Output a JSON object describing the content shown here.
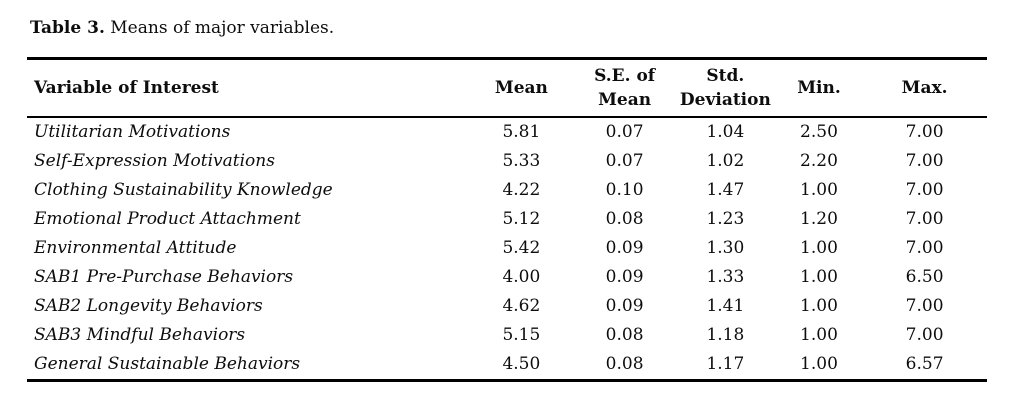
{
  "caption": {
    "label": "Table 3.",
    "text": " Means of major variables."
  },
  "colors": {
    "text": "#0d0d0d",
    "rule": "#000000",
    "background": "#ffffff"
  },
  "table": {
    "columns": [
      {
        "key": "variable",
        "label": "Variable of Interest",
        "align": "left"
      },
      {
        "key": "mean",
        "label": "Mean",
        "align": "center"
      },
      {
        "key": "se_of_mean",
        "label": "S.E. of\nMean",
        "align": "center"
      },
      {
        "key": "std_deviation",
        "label": "Std.\nDeviation",
        "align": "center"
      },
      {
        "key": "min",
        "label": "Min.",
        "align": "center"
      },
      {
        "key": "max",
        "label": "Max.",
        "align": "center"
      }
    ],
    "rows": [
      [
        "Utilitarian Motivations",
        "5.81",
        "0.07",
        "1.04",
        "2.50",
        "7.00"
      ],
      [
        "Self-Expression Motivations",
        "5.33",
        "0.07",
        "1.02",
        "2.20",
        "7.00"
      ],
      [
        "Clothing Sustainability Knowledge",
        "4.22",
        "0.10",
        "1.47",
        "1.00",
        "7.00"
      ],
      [
        "Emotional Product Attachment",
        "5.12",
        "0.08",
        "1.23",
        "1.20",
        "7.00"
      ],
      [
        "Environmental Attitude",
        "5.42",
        "0.09",
        "1.30",
        "1.00",
        "7.00"
      ],
      [
        "SAB1 Pre-Purchase Behaviors",
        "4.00",
        "0.09",
        "1.33",
        "1.00",
        "6.50"
      ],
      [
        "SAB2 Longevity Behaviors",
        "4.62",
        "0.09",
        "1.41",
        "1.00",
        "7.00"
      ],
      [
        "SAB3 Mindful Behaviors",
        "5.15",
        "0.08",
        "1.18",
        "1.00",
        "7.00"
      ],
      [
        "General Sustainable Behaviors",
        "4.50",
        "0.08",
        "1.17",
        "1.00",
        "6.57"
      ]
    ]
  }
}
